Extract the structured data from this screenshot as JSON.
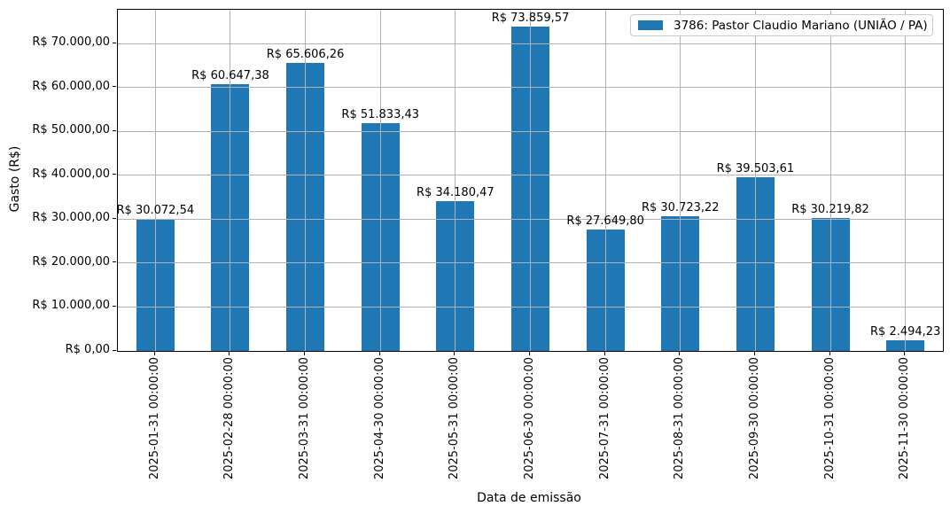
{
  "chart_data": {
    "type": "bar",
    "title": "",
    "xlabel": "Data de emissão",
    "ylabel": "Gasto (R$)",
    "categories": [
      "2025-01-31 00:00:00",
      "2025-02-28 00:00:00",
      "2025-03-31 00:00:00",
      "2025-04-30 00:00:00",
      "2025-05-31 00:00:00",
      "2025-06-30 00:00:00",
      "2025-07-31 00:00:00",
      "2025-08-31 00:00:00",
      "2025-09-30 00:00:00",
      "2025-10-31 00:00:00",
      "2025-11-30 00:00:00"
    ],
    "values": [
      30072.54,
      60647.38,
      65606.26,
      51833.43,
      34180.47,
      73859.57,
      27649.8,
      30723.22,
      39503.61,
      30219.82,
      2494.23
    ],
    "value_labels": [
      "R$ 30.072,54",
      "R$ 60.647,38",
      "R$ 65.606,26",
      "R$ 51.833,43",
      "R$ 34.180,47",
      "R$ 73.859,57",
      "R$ 27.649,80",
      "R$ 30.723,22",
      "R$ 39.503,61",
      "R$ 30.219,82",
      "R$ 2.494,23"
    ],
    "ytick_values": [
      0,
      10000,
      20000,
      30000,
      40000,
      50000,
      60000,
      70000
    ],
    "ytick_labels": [
      "R$ 0,00",
      "R$ 10.000,00",
      "R$ 20.000,00",
      "R$ 30.000,00",
      "R$ 40.000,00",
      "R$ 50.000,00",
      "R$ 60.000,00",
      "R$ 70.000,00"
    ],
    "ylim": [
      0,
      77650
    ],
    "grid": true,
    "legend": {
      "label": "3786: Pastor Claudio Mariano (UNIÃO / PA)",
      "position": "upper right"
    },
    "colors": {
      "bar": "#1f77b4",
      "grid": "#b2b2b2",
      "spine": "#000000",
      "text": "#000000"
    }
  }
}
